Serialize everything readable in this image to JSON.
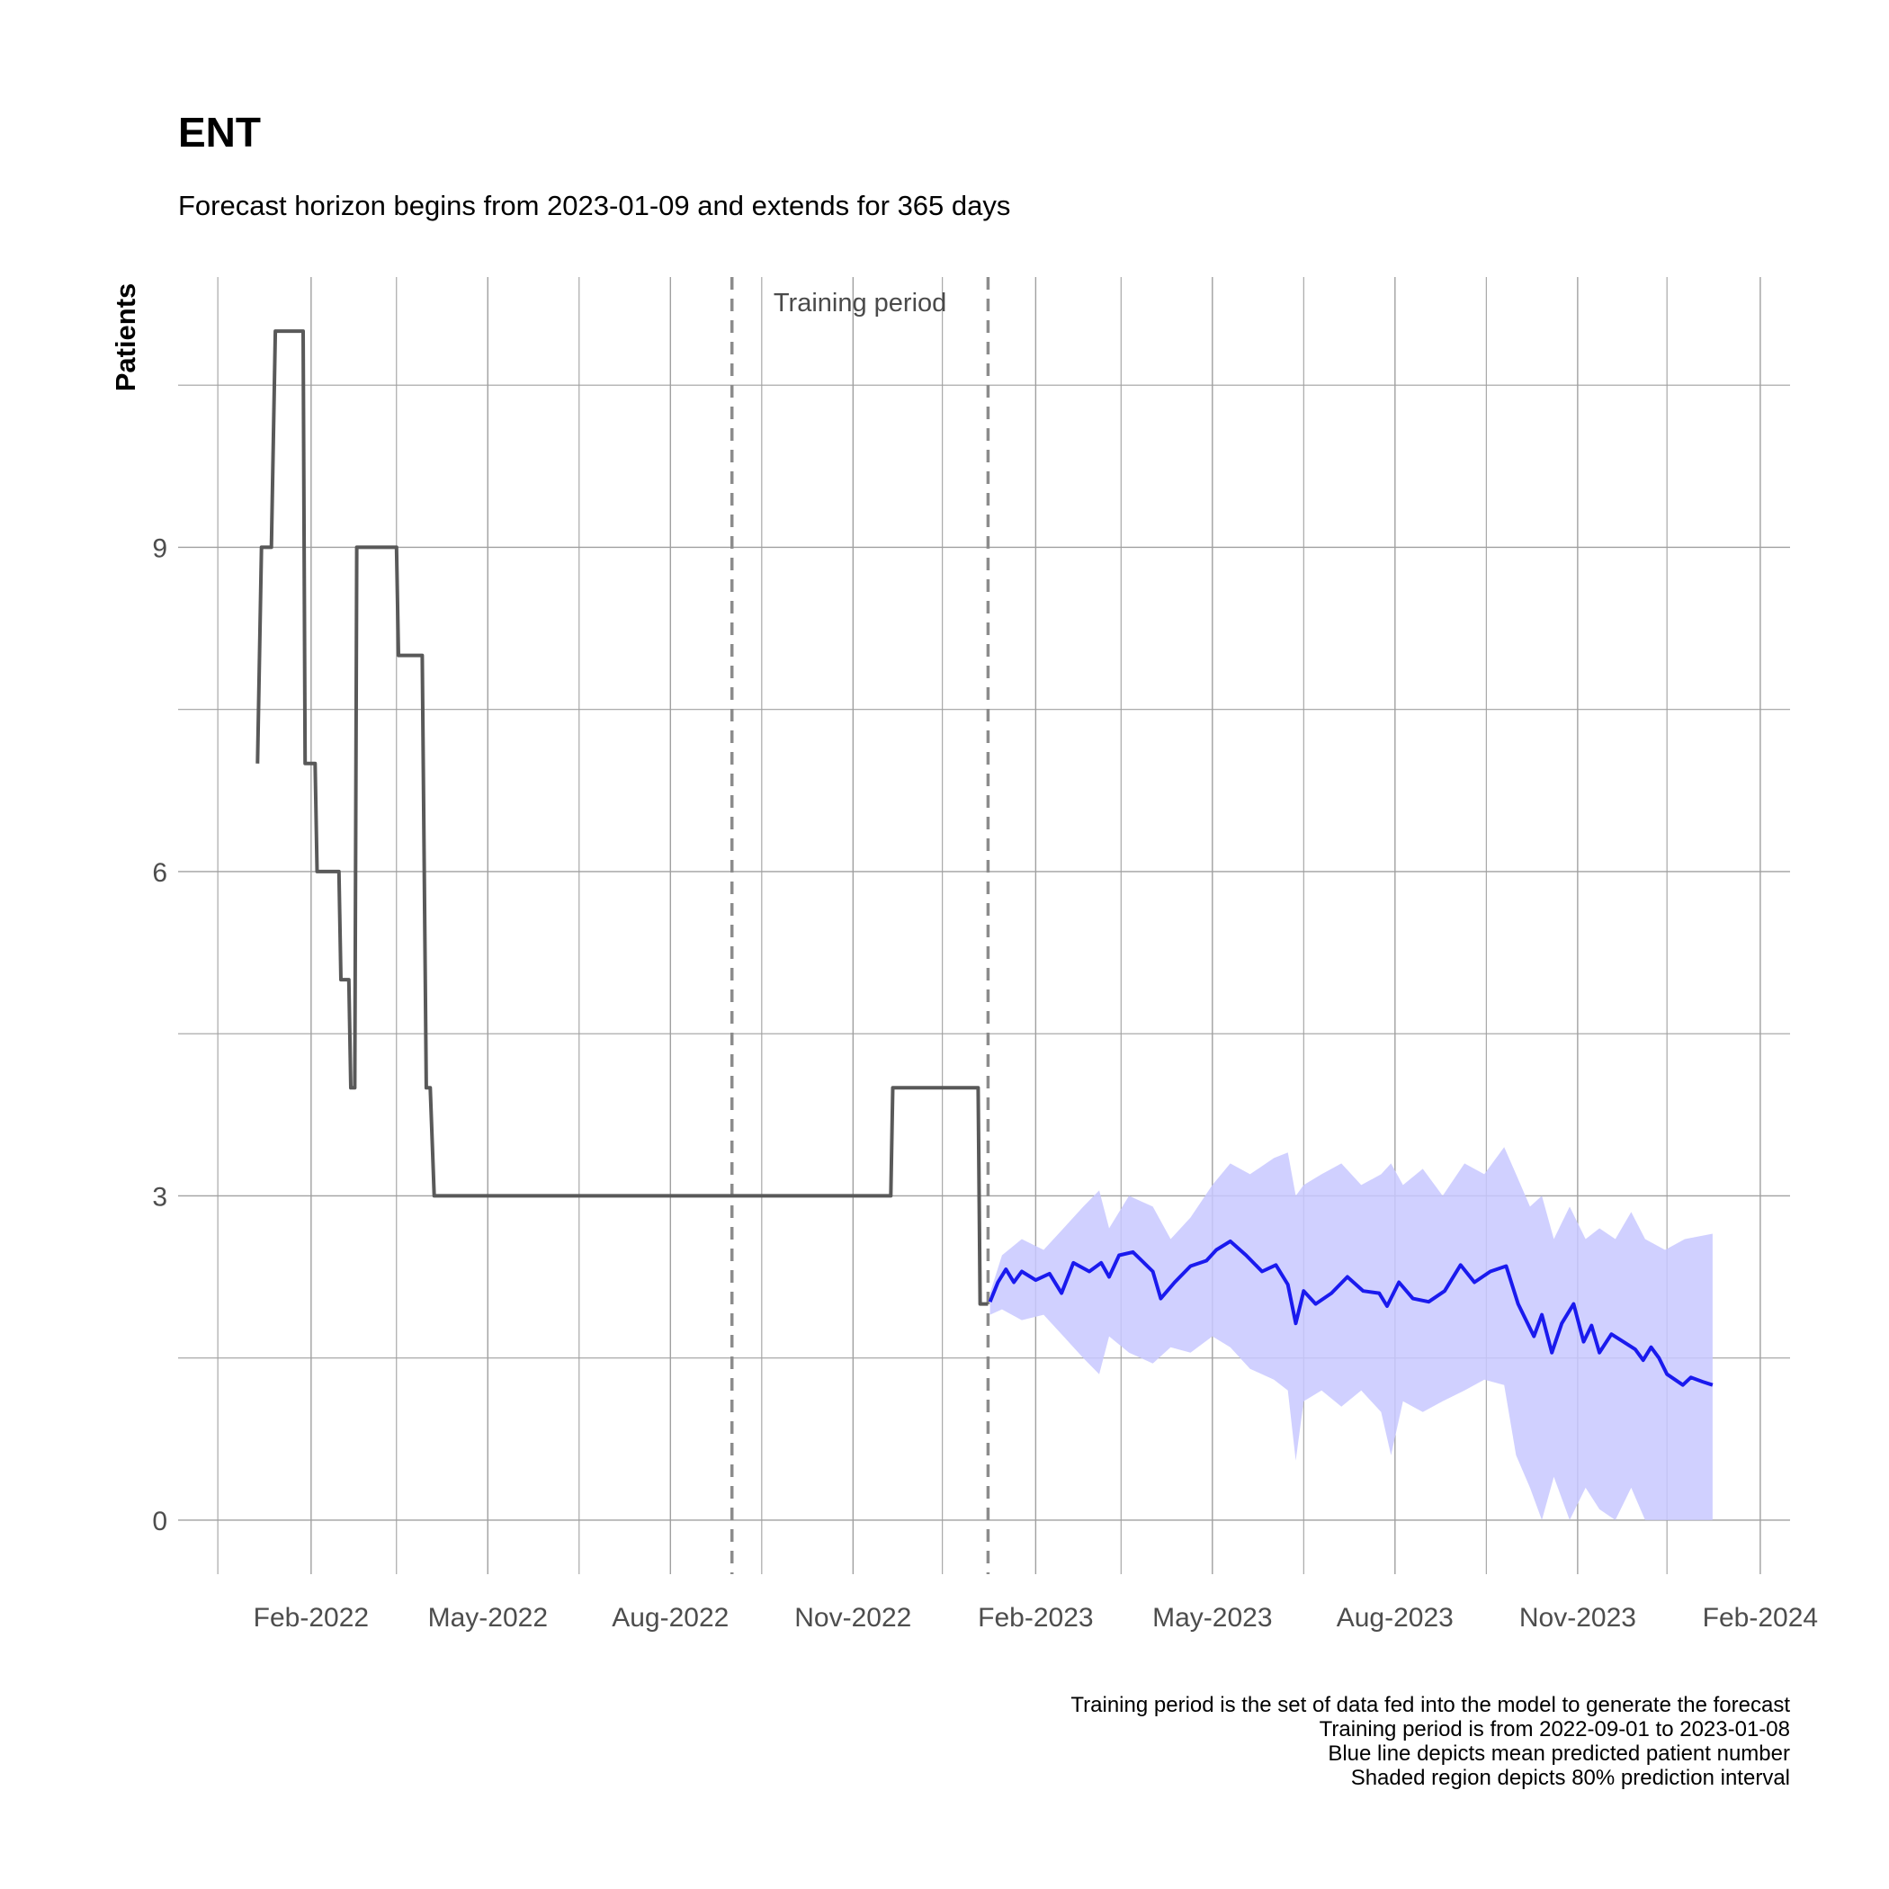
{
  "chart_data": {
    "type": "line",
    "title": "ENT",
    "subtitle": "Forecast horizon begins from 2023-01-09 and extends for 365 days",
    "xlabel": "",
    "ylabel": "Patients",
    "x_tick_labels": [
      "Feb-2022",
      "May-2022",
      "Aug-2022",
      "Nov-2022",
      "Feb-2023",
      "May-2023",
      "Aug-2023",
      "Nov-2023",
      "Feb-2024"
    ],
    "x_ticks": [
      "2022-02-01",
      "2022-05-01",
      "2022-08-01",
      "2022-11-01",
      "2023-02-01",
      "2023-05-01",
      "2023-08-01",
      "2023-11-01",
      "2024-02-01"
    ],
    "x_minor_ticks": [
      "2021-12-16",
      "2022-03-16",
      "2022-06-16",
      "2022-09-16",
      "2022-12-16",
      "2023-03-16",
      "2023-06-16",
      "2023-09-16",
      "2023-12-16"
    ],
    "xlim": [
      "2021-11-26",
      "2024-02-16"
    ],
    "y_ticks": [
      0,
      3,
      6,
      9
    ],
    "y_tick_labels": [
      "0",
      "3",
      "6",
      "9"
    ],
    "y_minor_ticks": [
      1.5,
      4.5,
      7.5,
      10.5
    ],
    "ylim": [
      -0.5,
      11.5
    ],
    "grid": true,
    "annotation": {
      "label": "Training period",
      "start": "2022-09-01",
      "end": "2023-01-08"
    },
    "caption": [
      "Training period is the set of data fed into the model to generate the forecast",
      "Training period is from 2022-09-01 to 2023-01-08",
      "Blue line depicts mean predicted patient number",
      "Shaded region depicts 80% prediction interval"
    ],
    "series": [
      {
        "kind": "observed",
        "color": "#595959",
        "points": [
          [
            "2022-01-05",
            7
          ],
          [
            "2022-01-07",
            9
          ],
          [
            "2022-01-12",
            9
          ],
          [
            "2022-01-14",
            11
          ],
          [
            "2022-01-28",
            11
          ],
          [
            "2022-01-29",
            7
          ],
          [
            "2022-02-03",
            7
          ],
          [
            "2022-02-04",
            6
          ],
          [
            "2022-02-15",
            6
          ],
          [
            "2022-02-16",
            5
          ],
          [
            "2022-02-20",
            5
          ],
          [
            "2022-02-21",
            4
          ],
          [
            "2022-02-23",
            4
          ],
          [
            "2022-02-24",
            9
          ],
          [
            "2022-03-16",
            9
          ],
          [
            "2022-03-17",
            8
          ],
          [
            "2022-03-29",
            8
          ],
          [
            "2022-03-31",
            4
          ],
          [
            "2022-04-02",
            4
          ],
          [
            "2022-04-04",
            3
          ],
          [
            "2022-11-20",
            3
          ],
          [
            "2022-11-21",
            4
          ],
          [
            "2023-01-03",
            4
          ],
          [
            "2023-01-04",
            2
          ],
          [
            "2023-01-08",
            2
          ]
        ]
      },
      {
        "kind": "forecast_mean",
        "color": "#1a1aee",
        "points": [
          [
            "2023-01-09",
            2.02
          ],
          [
            "2023-01-13",
            2.2
          ],
          [
            "2023-01-17",
            2.32
          ],
          [
            "2023-01-21",
            2.2
          ],
          [
            "2023-01-25",
            2.3
          ],
          [
            "2023-02-01",
            2.22
          ],
          [
            "2023-02-08",
            2.28
          ],
          [
            "2023-02-14",
            2.1
          ],
          [
            "2023-02-20",
            2.38
          ],
          [
            "2023-02-28",
            2.3
          ],
          [
            "2023-03-06",
            2.38
          ],
          [
            "2023-03-10",
            2.25
          ],
          [
            "2023-03-15",
            2.45
          ],
          [
            "2023-03-22",
            2.48
          ],
          [
            "2023-04-01",
            2.3
          ],
          [
            "2023-04-05",
            2.05
          ],
          [
            "2023-04-12",
            2.2
          ],
          [
            "2023-04-20",
            2.35
          ],
          [
            "2023-04-28",
            2.4
          ],
          [
            "2023-05-03",
            2.5
          ],
          [
            "2023-05-10",
            2.58
          ],
          [
            "2023-05-18",
            2.45
          ],
          [
            "2023-05-26",
            2.3
          ],
          [
            "2023-06-02",
            2.36
          ],
          [
            "2023-06-08",
            2.18
          ],
          [
            "2023-06-12",
            1.82
          ],
          [
            "2023-06-16",
            2.12
          ],
          [
            "2023-06-22",
            2.0
          ],
          [
            "2023-06-30",
            2.1
          ],
          [
            "2023-07-08",
            2.25
          ],
          [
            "2023-07-16",
            2.12
          ],
          [
            "2023-07-24",
            2.1
          ],
          [
            "2023-07-28",
            1.98
          ],
          [
            "2023-08-03",
            2.2
          ],
          [
            "2023-08-10",
            2.05
          ],
          [
            "2023-08-18",
            2.02
          ],
          [
            "2023-08-26",
            2.12
          ],
          [
            "2023-09-03",
            2.36
          ],
          [
            "2023-09-10",
            2.2
          ],
          [
            "2023-09-18",
            2.3
          ],
          [
            "2023-09-26",
            2.35
          ],
          [
            "2023-10-02",
            2.0
          ],
          [
            "2023-10-06",
            1.85
          ],
          [
            "2023-10-10",
            1.7
          ],
          [
            "2023-10-14",
            1.9
          ],
          [
            "2023-10-19",
            1.55
          ],
          [
            "2023-10-24",
            1.82
          ],
          [
            "2023-10-30",
            2.0
          ],
          [
            "2023-11-04",
            1.65
          ],
          [
            "2023-11-08",
            1.8
          ],
          [
            "2023-11-12",
            1.55
          ],
          [
            "2023-11-18",
            1.72
          ],
          [
            "2023-11-24",
            1.65
          ],
          [
            "2023-11-30",
            1.58
          ],
          [
            "2023-12-04",
            1.48
          ],
          [
            "2023-12-08",
            1.6
          ],
          [
            "2023-12-12",
            1.5
          ],
          [
            "2023-12-16",
            1.35
          ],
          [
            "2023-12-20",
            1.3
          ],
          [
            "2023-12-24",
            1.25
          ],
          [
            "2023-12-28",
            1.32
          ],
          [
            "2024-01-03",
            1.28
          ],
          [
            "2024-01-08",
            1.25
          ]
        ]
      },
      {
        "kind": "prediction_interval_80",
        "color": "#c8c8ff",
        "points": [
          [
            "2023-01-09",
            1.9,
            2.1
          ],
          [
            "2023-01-15",
            1.95,
            2.45
          ],
          [
            "2023-01-25",
            1.85,
            2.6
          ],
          [
            "2023-02-05",
            1.9,
            2.5
          ],
          [
            "2023-02-15",
            1.7,
            2.7
          ],
          [
            "2023-02-25",
            1.5,
            2.9
          ],
          [
            "2023-03-05",
            1.35,
            3.05
          ],
          [
            "2023-03-10",
            1.7,
            2.7
          ],
          [
            "2023-03-20",
            1.55,
            3.0
          ],
          [
            "2023-04-01",
            1.45,
            2.9
          ],
          [
            "2023-04-10",
            1.6,
            2.6
          ],
          [
            "2023-04-20",
            1.55,
            2.8
          ],
          [
            "2023-05-01",
            1.7,
            3.1
          ],
          [
            "2023-05-10",
            1.6,
            3.3
          ],
          [
            "2023-05-20",
            1.4,
            3.2
          ],
          [
            "2023-06-01",
            1.3,
            3.35
          ],
          [
            "2023-06-08",
            1.2,
            3.4
          ],
          [
            "2023-06-12",
            0.55,
            3.0
          ],
          [
            "2023-06-16",
            1.1,
            3.1
          ],
          [
            "2023-06-25",
            1.2,
            3.2
          ],
          [
            "2023-07-05",
            1.05,
            3.3
          ],
          [
            "2023-07-15",
            1.2,
            3.1
          ],
          [
            "2023-07-25",
            1.0,
            3.2
          ],
          [
            "2023-07-30",
            0.6,
            3.3
          ],
          [
            "2023-08-05",
            1.1,
            3.1
          ],
          [
            "2023-08-15",
            1.0,
            3.25
          ],
          [
            "2023-08-25",
            1.1,
            3.0
          ],
          [
            "2023-09-05",
            1.2,
            3.3
          ],
          [
            "2023-09-15",
            1.3,
            3.2
          ],
          [
            "2023-09-25",
            1.25,
            3.45
          ],
          [
            "2023-10-01",
            0.6,
            3.2
          ],
          [
            "2023-10-08",
            0.3,
            2.9
          ],
          [
            "2023-10-14",
            0.0,
            3.0
          ],
          [
            "2023-10-20",
            0.4,
            2.6
          ],
          [
            "2023-10-28",
            0.0,
            2.9
          ],
          [
            "2023-11-05",
            0.3,
            2.6
          ],
          [
            "2023-11-12",
            0.1,
            2.7
          ],
          [
            "2023-11-20",
            0.0,
            2.6
          ],
          [
            "2023-11-28",
            0.3,
            2.85
          ],
          [
            "2023-12-05",
            0.0,
            2.6
          ],
          [
            "2023-12-15",
            0.0,
            2.5
          ],
          [
            "2023-12-25",
            0.0,
            2.6
          ],
          [
            "2024-01-08",
            0.0,
            2.65
          ]
        ]
      }
    ]
  }
}
